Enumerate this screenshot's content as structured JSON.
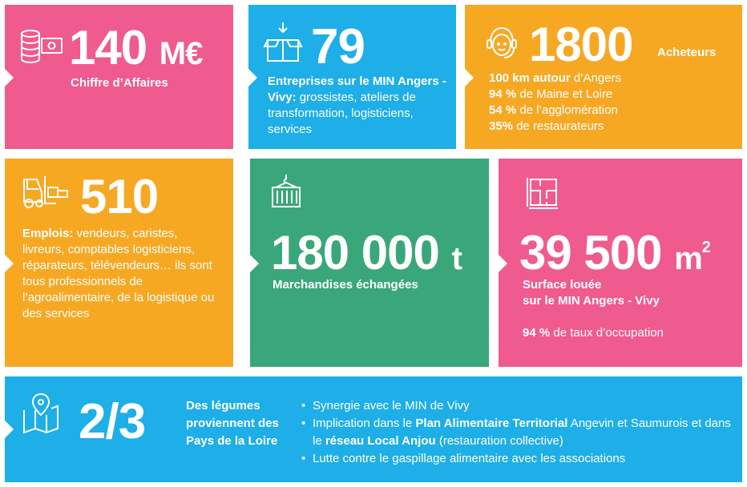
{
  "tile1": {
    "value": "140",
    "unit": "M€",
    "label": "Chiffre d’Affaires",
    "icon": "coins-money-icon"
  },
  "tile2": {
    "value": "79",
    "label_bold": "Entreprises sur le MIN Angers - Vivy:",
    "label_rest": " grossistes, ateliers de transformation, logisticiens, services",
    "icon": "open-box-icon"
  },
  "tile3": {
    "value": "1800",
    "unit": "Acheteurs",
    "icon": "headset-person-icon",
    "lines": [
      {
        "bold": "100 km autour",
        "rest": " d’Angers"
      },
      {
        "bold": "94 %",
        "rest": " de Maine et Loire"
      },
      {
        "bold": "54 %",
        "rest": " de l’agglomération"
      },
      {
        "bold": "35%",
        "rest": " de restaurateurs"
      }
    ]
  },
  "tile4": {
    "value": "510",
    "label_bold": "Emplois:",
    "label_rest": " vendeurs, caristes, livreurs, comptables logisticiens, réparateurs, télévendeurs… ils sont tous professionnels de l’agroalimentaire, de la logistique ou des services",
    "icon": "forklift-icon"
  },
  "tile5": {
    "value": "180 000",
    "unit": "t",
    "label": "Marchandises échangées",
    "icon": "container-icon"
  },
  "tile6": {
    "value": "39 500",
    "unit": "m",
    "unit_sup": "2",
    "label_line1": "Surface louée",
    "label_line2": "sur le MIN Angers - Vivy",
    "occ_bold": "94 %",
    "occ_rest": " de taux d’occupation",
    "icon": "floor-plan-icon"
  },
  "tile7": {
    "value": "2/3",
    "label": "Des légumes proviennent des Pays de la Loire",
    "icon": "map-pin-icon",
    "bullets": {
      "b1": "Synergie avec le MIN de Vivy",
      "b2_a": "Implication dans le ",
      "b2_b": "Plan Alimentaire Territorial",
      "b2_c": " Angevin et Saumurois et dans le ",
      "b2_d": "réseau Local Anjou",
      "b2_e": " (restauration collective)",
      "b3": "Lutte contre le gaspillage alimentaire avec les associations"
    }
  },
  "colors": {
    "pink": "#ef5b8e",
    "blue": "#1eaee8",
    "orange": "#f7a823",
    "green": "#3aa77a"
  }
}
